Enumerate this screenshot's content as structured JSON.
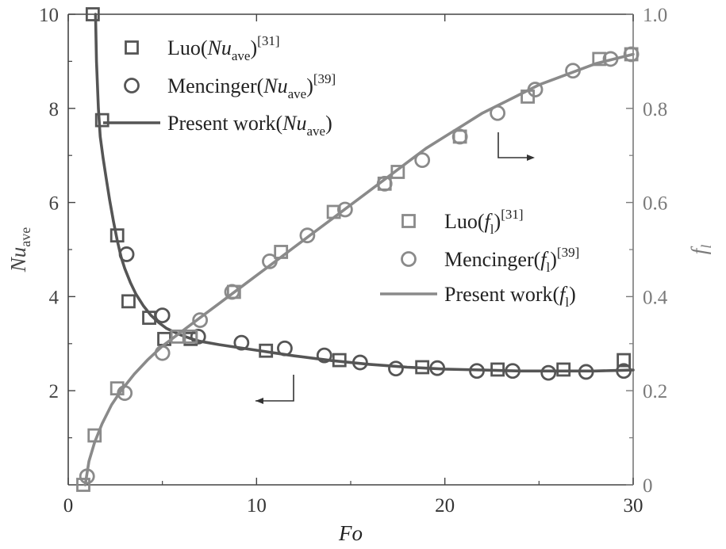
{
  "colors": {
    "nu_series": "#555555",
    "fl_series": "#8a8a8a",
    "axis": "#333333"
  },
  "chart_data": {
    "type": "line",
    "xlabel": "Fo",
    "xlim": [
      0,
      30
    ],
    "x_ticks": [
      "0",
      "10",
      "20",
      "30"
    ],
    "y_left": {
      "label": "Nu",
      "label_sub": "ave",
      "lim": [
        0,
        10
      ],
      "ticks": [
        "2",
        "4",
        "6",
        "8",
        "10"
      ]
    },
    "y_right": {
      "label": "f",
      "label_sub": "l",
      "lim": [
        0,
        1.0
      ],
      "ticks": [
        "0",
        "0.2",
        "0.4",
        "0.6",
        "0.8",
        "1.0"
      ]
    },
    "series": [
      {
        "name": "Luo(Nu_ave)",
        "axis": "left",
        "marker": "square",
        "color": "#555555",
        "x": [
          1.3,
          1.8,
          2.6,
          3.2,
          4.3,
          5.1,
          6.5,
          10.5,
          14.4,
          18.8,
          22.8,
          26.3,
          29.5
        ],
        "y": [
          10.0,
          7.75,
          5.3,
          3.9,
          3.55,
          3.1,
          3.1,
          2.85,
          2.65,
          2.5,
          2.45,
          2.45,
          2.65
        ]
      },
      {
        "name": "Mencinger(Nu_ave)",
        "axis": "left",
        "marker": "circle",
        "color": "#555555",
        "x": [
          3.1,
          5.0,
          6.9,
          9.2,
          11.5,
          13.6,
          15.5,
          17.4,
          19.6,
          21.7,
          23.6,
          25.5,
          27.5,
          29.5
        ],
        "y": [
          4.9,
          3.6,
          3.15,
          3.02,
          2.9,
          2.75,
          2.6,
          2.47,
          2.48,
          2.42,
          2.42,
          2.38,
          2.4,
          2.42
        ]
      },
      {
        "name": "Present work(Nu_ave)",
        "axis": "left",
        "marker": "line",
        "color": "#555555",
        "x": [
          1.45,
          1.5,
          1.6,
          1.7,
          1.85,
          2.0,
          2.2,
          2.4,
          2.6,
          2.8,
          3.0,
          3.3,
          3.6,
          4.0,
          4.4,
          4.8,
          5.2,
          5.6,
          6.0,
          6.5,
          7.0,
          8.0,
          9.0,
          10.0,
          11.0,
          12.0,
          13.0,
          14.0,
          15.0,
          16.0,
          17.0,
          18.0,
          19.0,
          20.0,
          21.0,
          22.0,
          23.0,
          24.0,
          25.0,
          26.0,
          27.0,
          28.0,
          29.0,
          30.0
        ],
        "y": [
          10.0,
          9.0,
          8.0,
          7.4,
          6.95,
          6.55,
          6.05,
          5.6,
          5.2,
          4.85,
          4.6,
          4.3,
          4.05,
          3.8,
          3.6,
          3.45,
          3.33,
          3.25,
          3.18,
          3.11,
          3.05,
          2.98,
          2.92,
          2.86,
          2.8,
          2.74,
          2.69,
          2.64,
          2.6,
          2.56,
          2.53,
          2.5,
          2.48,
          2.46,
          2.45,
          2.44,
          2.43,
          2.42,
          2.42,
          2.42,
          2.42,
          2.42,
          2.43,
          2.44
        ]
      },
      {
        "name": "Luo(f_l)",
        "axis": "right",
        "marker": "square",
        "color": "#8a8a8a",
        "x": [
          0.8,
          1.4,
          2.6,
          5.8,
          6.5,
          8.8,
          11.3,
          14.1,
          16.8,
          17.5,
          20.8,
          24.4,
          28.2,
          29.9
        ],
        "y": [
          0.0,
          0.105,
          0.205,
          0.315,
          0.315,
          0.41,
          0.495,
          0.58,
          0.64,
          0.665,
          0.74,
          0.825,
          0.905,
          0.915
        ]
      },
      {
        "name": "Mencinger(f_l)",
        "axis": "right",
        "marker": "circle",
        "color": "#8a8a8a",
        "x": [
          1.0,
          3.0,
          5.0,
          7.0,
          8.7,
          10.7,
          12.7,
          14.7,
          16.8,
          18.8,
          20.8,
          22.8,
          24.8,
          26.8,
          28.8,
          29.9
        ],
        "y": [
          0.018,
          0.195,
          0.28,
          0.35,
          0.41,
          0.475,
          0.53,
          0.585,
          0.64,
          0.69,
          0.74,
          0.79,
          0.84,
          0.88,
          0.905,
          0.915
        ]
      },
      {
        "name": "Present work(f_l)",
        "axis": "right",
        "marker": "line",
        "color": "#8a8a8a",
        "x": [
          0.9,
          1.1,
          1.4,
          1.8,
          2.3,
          2.8,
          3.5,
          4.2,
          5.0,
          6.0,
          7.0,
          8.0,
          9.0,
          10.0,
          11.0,
          12.0,
          13.0,
          14.0,
          15.0,
          16.0,
          17.0,
          18.0,
          19.0,
          20.0,
          21.0,
          22.0,
          23.0,
          24.0,
          25.0,
          26.0,
          27.0,
          28.0,
          29.0,
          30.0
        ],
        "y": [
          0.0,
          0.05,
          0.09,
          0.13,
          0.17,
          0.2,
          0.235,
          0.265,
          0.295,
          0.325,
          0.355,
          0.385,
          0.415,
          0.445,
          0.475,
          0.505,
          0.535,
          0.565,
          0.595,
          0.625,
          0.655,
          0.685,
          0.715,
          0.74,
          0.765,
          0.79,
          0.81,
          0.83,
          0.85,
          0.865,
          0.88,
          0.895,
          0.905,
          0.915
        ]
      }
    ],
    "legend_nu": [
      {
        "name": "Luo",
        "open": "(",
        "var": "Nu",
        "sub": "ave",
        "close": ")",
        "sup": "[31]",
        "marker": "square"
      },
      {
        "name": "Mencinger",
        "open": "(",
        "var": "Nu",
        "sub": "ave",
        "close": ")",
        "sup": "[39]",
        "marker": "circle"
      },
      {
        "name": "Present work",
        "open": "(",
        "var": "Nu",
        "sub": "ave",
        "close": ")",
        "sup": "",
        "marker": "line"
      }
    ],
    "legend_fl": [
      {
        "name": "Luo",
        "open": "(",
        "var": "f",
        "sub": "l",
        "close": ")",
        "sup": "[31]",
        "marker": "square"
      },
      {
        "name": "Mencinger",
        "open": "(",
        "var": "f",
        "sub": "l",
        "close": ")",
        "sup": "[39]",
        "marker": "circle"
      },
      {
        "name": "Present work",
        "open": "(",
        "var": "f",
        "sub": "l",
        "close": ")",
        "sup": "",
        "marker": "line"
      }
    ]
  }
}
